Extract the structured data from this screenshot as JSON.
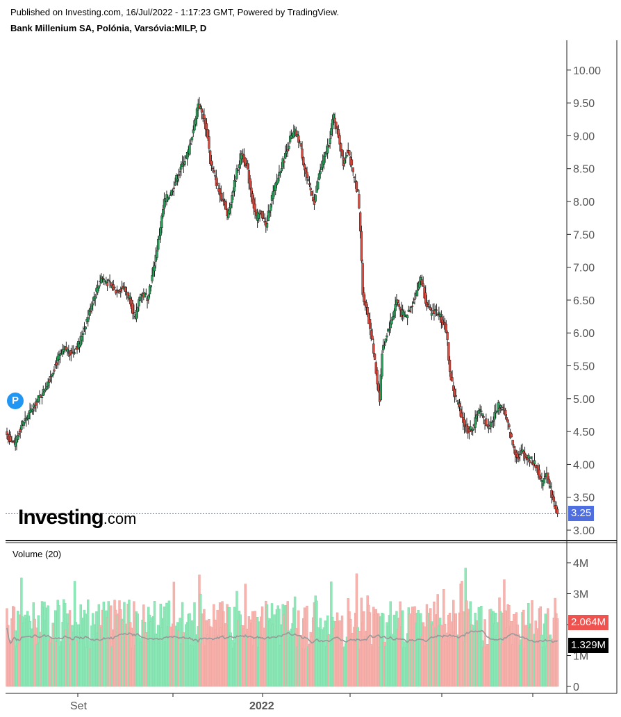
{
  "header": {
    "published": "Published on Investing.com, 16/Jul/2022 - 1:17:23 GMT, Powered by TradingView.",
    "symbol": "Bank Millenium SA, Polónia, Varsóvia:MILP, D"
  },
  "logo": {
    "main": "Investing",
    "suffix": ".com"
  },
  "marker": {
    "label": "P"
  },
  "price_badge": {
    "value": "3.25",
    "color": "#4f6fe0"
  },
  "volume_panel": {
    "label": "Volume (20)",
    "badge_volume": {
      "value": "2.064M",
      "color": "#ef5350"
    },
    "badge_ma": {
      "value": "1.329M",
      "color": "#000000"
    }
  },
  "colors": {
    "up": "#26a65b",
    "down": "#e0493c",
    "vol_up": "#8ee8b8",
    "vol_down": "#f7b3ae",
    "ma": "#999999"
  },
  "chart_data": {
    "type": "candlestick",
    "price_axis": {
      "ticks": [
        "10.00",
        "9.50",
        "9.00",
        "8.50",
        "8.00",
        "7.50",
        "7.00",
        "6.50",
        "6.00",
        "5.50",
        "5.00",
        "4.50",
        "4.00",
        "3.50",
        "3.00"
      ],
      "ylim": [
        2.9,
        10.45
      ]
    },
    "volume_axis": {
      "ticks": [
        "4M",
        "3M",
        "2M",
        "1M",
        "0"
      ],
      "ylim": [
        0,
        4.2
      ]
    },
    "x_labels": [
      "Set",
      "2022"
    ],
    "last_price": 3.25,
    "close_path": [
      [
        0,
        4.45
      ],
      [
        6,
        4.3
      ],
      [
        12,
        4.6
      ],
      [
        18,
        4.75
      ],
      [
        24,
        4.95
      ],
      [
        30,
        5.1
      ],
      [
        36,
        5.35
      ],
      [
        42,
        5.6
      ],
      [
        48,
        5.75
      ],
      [
        54,
        5.7
      ],
      [
        60,
        5.85
      ],
      [
        66,
        6.2
      ],
      [
        72,
        6.55
      ],
      [
        78,
        6.85
      ],
      [
        84,
        6.75
      ],
      [
        90,
        6.65
      ],
      [
        96,
        6.7
      ],
      [
        102,
        6.5
      ],
      [
        106,
        6.2
      ],
      [
        110,
        6.6
      ],
      [
        116,
        6.55
      ],
      [
        120,
        6.85
      ],
      [
        126,
        7.5
      ],
      [
        130,
        8.0
      ],
      [
        136,
        8.15
      ],
      [
        140,
        8.35
      ],
      [
        146,
        8.6
      ],
      [
        150,
        8.75
      ],
      [
        154,
        9.1
      ],
      [
        158,
        9.5
      ],
      [
        162,
        9.3
      ],
      [
        166,
        9.0
      ],
      [
        168,
        8.6
      ],
      [
        172,
        8.35
      ],
      [
        176,
        8.1
      ],
      [
        180,
        8.0
      ],
      [
        182,
        7.75
      ],
      [
        186,
        8.1
      ],
      [
        190,
        8.45
      ],
      [
        194,
        8.75
      ],
      [
        198,
        8.55
      ],
      [
        202,
        8.1
      ],
      [
        206,
        7.75
      ],
      [
        210,
        7.85
      ],
      [
        214,
        7.6
      ],
      [
        218,
        8.0
      ],
      [
        222,
        8.25
      ],
      [
        226,
        8.5
      ],
      [
        230,
        8.7
      ],
      [
        234,
        8.95
      ],
      [
        238,
        9.05
      ],
      [
        242,
        8.9
      ],
      [
        246,
        8.5
      ],
      [
        250,
        8.2
      ],
      [
        254,
        8.0
      ],
      [
        258,
        8.4
      ],
      [
        262,
        8.65
      ],
      [
        266,
        8.9
      ],
      [
        270,
        9.3
      ],
      [
        274,
        9.0
      ],
      [
        278,
        8.6
      ],
      [
        282,
        8.8
      ],
      [
        286,
        8.4
      ],
      [
        290,
        8.15
      ],
      [
        292,
        7.55
      ],
      [
        294,
        6.6
      ],
      [
        298,
        6.3
      ],
      [
        302,
        5.85
      ],
      [
        306,
        5.25
      ],
      [
        308,
        5.0
      ],
      [
        310,
        5.7
      ],
      [
        314,
        6.0
      ],
      [
        318,
        6.2
      ],
      [
        322,
        6.5
      ],
      [
        326,
        6.3
      ],
      [
        330,
        6.25
      ],
      [
        334,
        6.4
      ],
      [
        338,
        6.6
      ],
      [
        342,
        6.85
      ],
      [
        346,
        6.5
      ],
      [
        350,
        6.3
      ],
      [
        354,
        6.35
      ],
      [
        358,
        6.25
      ],
      [
        362,
        6.1
      ],
      [
        364,
        5.85
      ],
      [
        366,
        5.4
      ],
      [
        370,
        5.05
      ],
      [
        374,
        4.85
      ],
      [
        378,
        4.6
      ],
      [
        382,
        4.5
      ],
      [
        386,
        4.6
      ],
      [
        390,
        4.85
      ],
      [
        394,
        4.7
      ],
      [
        398,
        4.55
      ],
      [
        402,
        4.7
      ],
      [
        406,
        4.9
      ],
      [
        410,
        4.85
      ],
      [
        414,
        4.6
      ],
      [
        418,
        4.3
      ],
      [
        422,
        4.1
      ],
      [
        426,
        4.2
      ],
      [
        430,
        4.1
      ],
      [
        434,
        4.05
      ],
      [
        438,
        3.95
      ],
      [
        442,
        3.7
      ],
      [
        446,
        3.9
      ],
      [
        448,
        3.7
      ],
      [
        452,
        3.4
      ],
      [
        455,
        3.25
      ]
    ]
  }
}
